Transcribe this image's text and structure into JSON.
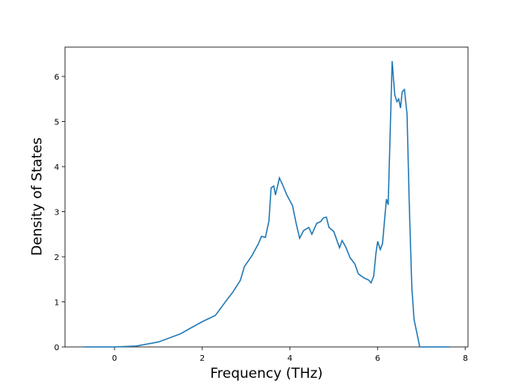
{
  "chart_data": {
    "type": "line",
    "xlabel": "Frequency (THz)",
    "ylabel": "Density of States",
    "x": [
      -0.7,
      0,
      0.5,
      1.0,
      1.5,
      1.83,
      2.0,
      2.3,
      2.52,
      2.7,
      2.87,
      2.96,
      3.13,
      3.28,
      3.35,
      3.44,
      3.52,
      3.57,
      3.63,
      3.67,
      3.76,
      3.83,
      3.93,
      4.06,
      4.13,
      4.22,
      4.31,
      4.43,
      4.5,
      4.61,
      4.7,
      4.76,
      4.83,
      4.89,
      5.0,
      5.13,
      5.19,
      5.28,
      5.37,
      5.48,
      5.56,
      5.69,
      5.8,
      5.85,
      5.91,
      5.96,
      6.0,
      6.06,
      6.11,
      6.2,
      6.24,
      6.33,
      6.39,
      6.44,
      6.48,
      6.52,
      6.56,
      6.61,
      6.67,
      6.72,
      6.78,
      6.83,
      6.96,
      7.65
    ],
    "series": [
      {
        "color": "#1f77b4",
        "values": [
          0,
          0,
          0.02,
          0.11,
          0.29,
          0.47,
          0.56,
          0.7,
          0.99,
          1.22,
          1.48,
          1.78,
          2.02,
          2.29,
          2.45,
          2.43,
          2.79,
          3.53,
          3.57,
          3.37,
          3.75,
          3.6,
          3.37,
          3.13,
          2.79,
          2.41,
          2.58,
          2.65,
          2.5,
          2.74,
          2.78,
          2.86,
          2.88,
          2.65,
          2.56,
          2.2,
          2.36,
          2.2,
          1.98,
          1.84,
          1.62,
          1.53,
          1.48,
          1.42,
          1.57,
          2.07,
          2.34,
          2.16,
          2.29,
          3.28,
          3.15,
          6.34,
          5.59,
          5.44,
          5.5,
          5.3,
          5.66,
          5.71,
          5.17,
          3.19,
          1.3,
          0.61,
          0,
          0
        ]
      }
    ],
    "xlim": [
      -1.13,
      8.06
    ],
    "ylim": [
      0,
      6.65
    ],
    "xticks": [
      0,
      2,
      4,
      6,
      8
    ],
    "yticks": [
      0,
      1,
      2,
      3,
      4,
      5,
      6
    ]
  }
}
